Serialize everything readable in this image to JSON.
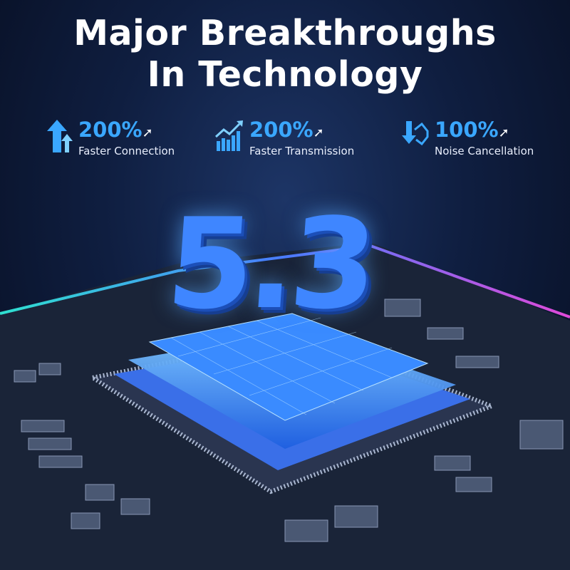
{
  "title": {
    "line1": "Major Breakthroughs",
    "line2": "In Technology"
  },
  "stats": [
    {
      "icon": "double-up-arrow-icon",
      "value": "200%",
      "label": "Faster Connection"
    },
    {
      "icon": "growth-chart-icon",
      "value": "200%",
      "label": "Faster Transmission"
    },
    {
      "icon": "speaker-down-arrow-icon",
      "value": "100%",
      "label": "Noise Cancellation"
    }
  ],
  "version": "5.3",
  "colors": {
    "accent": "#3aa7ff",
    "background": "#0f1e40",
    "chip": "#2f7dff",
    "glow_left": "#2fe0d0",
    "glow_right": "#e04ad8"
  }
}
